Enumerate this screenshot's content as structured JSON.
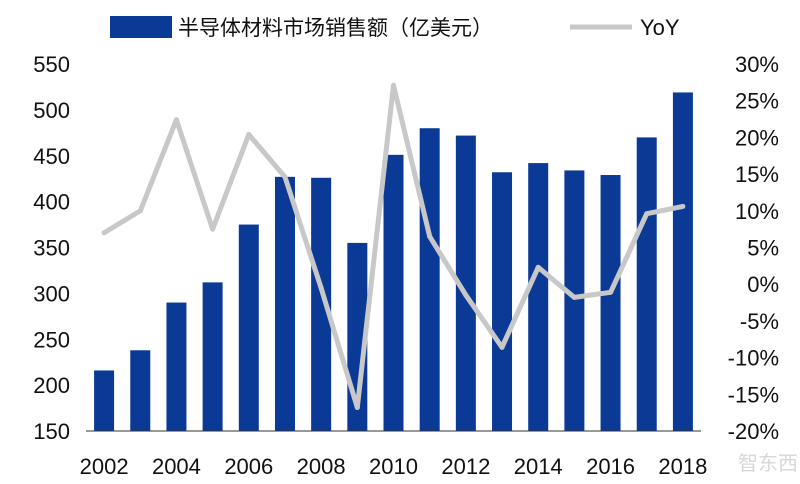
{
  "chart_data": {
    "type": "bar",
    "categories": [
      "2002",
      "2003",
      "2004",
      "2005",
      "2006",
      "2007",
      "2008",
      "2009",
      "2010",
      "2011",
      "2012",
      "2013",
      "2014",
      "2015",
      "2016",
      "2017",
      "2018"
    ],
    "x_tick_labels": [
      "2002",
      "2004",
      "2006",
      "2008",
      "2010",
      "2012",
      "2014",
      "2016",
      "2018"
    ],
    "series": [
      {
        "name": "半导体材料市场销售额（亿美元）",
        "type": "bar",
        "axis": "left",
        "color": "#0a3a96",
        "values": [
          216,
          238,
          290,
          312,
          375,
          427,
          426,
          355,
          451,
          480,
          472,
          432,
          442,
          434,
          429,
          470,
          519
        ]
      },
      {
        "name": "YoY",
        "type": "line",
        "axis": "right",
        "color": "#c8c8c8",
        "values": [
          7,
          10,
          22.4,
          7.5,
          20.4,
          14.6,
          -0.5,
          -16.8,
          27.1,
          6.5,
          -1.5,
          -8.6,
          2.3,
          -1.8,
          -1.1,
          9.6,
          10.6
        ]
      }
    ],
    "y_left": {
      "min": 150,
      "max": 550,
      "ticks": [
        "150",
        "200",
        "250",
        "300",
        "350",
        "400",
        "450",
        "500",
        "550"
      ]
    },
    "y_right": {
      "min": -20,
      "max": 30,
      "ticks": [
        "-20%",
        "-15%",
        "-10%",
        "-5%",
        "0%",
        "5%",
        "10%",
        "15%",
        "20%",
        "25%",
        "30%"
      ]
    },
    "legend_position": "top",
    "grid": false
  },
  "watermark": {
    "text": "智东西"
  }
}
